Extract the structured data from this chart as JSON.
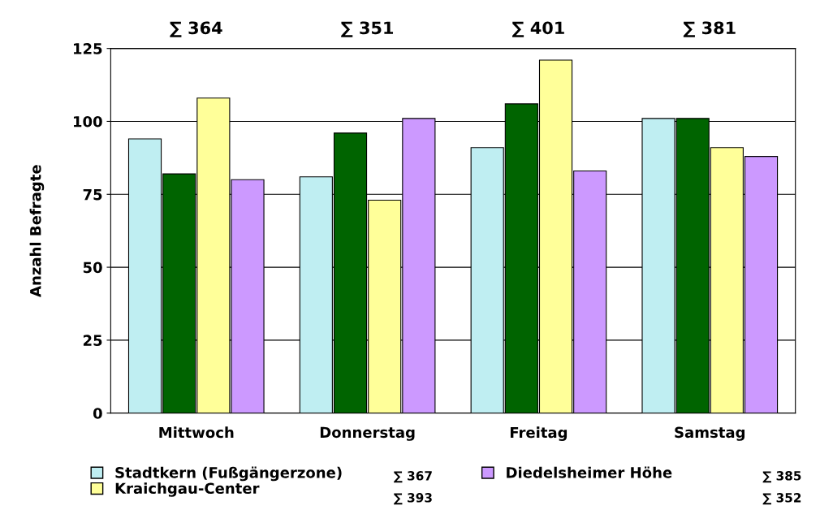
{
  "chart_data": {
    "type": "bar",
    "ylabel": "Anzahl Befragte",
    "categories": [
      "Mittwoch",
      "Donnerstag",
      "Freitag",
      "Samstag"
    ],
    "series": [
      {
        "name": "Stadtkern (Fußgängerzone)",
        "color": "#bfeef2",
        "values": [
          94,
          81,
          91,
          101
        ]
      },
      {
        "color": "#006400",
        "values": [
          82,
          96,
          106,
          101
        ]
      },
      {
        "name": "Kraichgau-Center",
        "color": "#ffff99",
        "values": [
          108,
          73,
          121,
          91
        ]
      },
      {
        "name": "Diedelsheimer Höhe",
        "color": "#cc99ff",
        "values": [
          80,
          101,
          83,
          88
        ]
      }
    ],
    "annotations": [
      "∑ 364",
      "∑ 351",
      "∑ 401",
      "∑ 381",
      "∑ 367",
      "∑ 385",
      "∑ 393",
      "∑ 352"
    ],
    "ylim": [
      0,
      125
    ],
    "yticks": [
      0,
      25,
      50,
      75,
      100,
      125
    ],
    "grid": "y",
    "legend": "bottom"
  }
}
